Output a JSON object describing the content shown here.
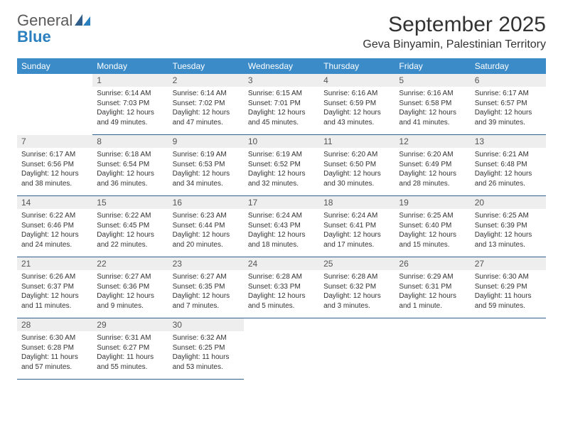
{
  "logo": {
    "text1": "General",
    "text2": "Blue"
  },
  "title": "September 2025",
  "location": "Geva Binyamin, Palestinian Territory",
  "colors": {
    "header_bg": "#3b8bc9",
    "header_text": "#ffffff",
    "day_header_bg": "#eeeeee",
    "day_header_text": "#555555",
    "cell_border": "#2f5f8a",
    "body_text": "#333333",
    "logo_gray": "#5a5a5a",
    "logo_blue": "#2a7fbf"
  },
  "typography": {
    "title_fontsize": 30,
    "location_fontsize": 16,
    "weekday_fontsize": 12,
    "daynum_fontsize": 12,
    "body_fontsize": 10
  },
  "weekdays": [
    "Sunday",
    "Monday",
    "Tuesday",
    "Wednesday",
    "Thursday",
    "Friday",
    "Saturday"
  ],
  "grid": [
    [
      null,
      {
        "n": "1",
        "sr": "Sunrise: 6:14 AM",
        "ss": "Sunset: 7:03 PM",
        "d1": "Daylight: 12 hours",
        "d2": "and 49 minutes."
      },
      {
        "n": "2",
        "sr": "Sunrise: 6:14 AM",
        "ss": "Sunset: 7:02 PM",
        "d1": "Daylight: 12 hours",
        "d2": "and 47 minutes."
      },
      {
        "n": "3",
        "sr": "Sunrise: 6:15 AM",
        "ss": "Sunset: 7:01 PM",
        "d1": "Daylight: 12 hours",
        "d2": "and 45 minutes."
      },
      {
        "n": "4",
        "sr": "Sunrise: 6:16 AM",
        "ss": "Sunset: 6:59 PM",
        "d1": "Daylight: 12 hours",
        "d2": "and 43 minutes."
      },
      {
        "n": "5",
        "sr": "Sunrise: 6:16 AM",
        "ss": "Sunset: 6:58 PM",
        "d1": "Daylight: 12 hours",
        "d2": "and 41 minutes."
      },
      {
        "n": "6",
        "sr": "Sunrise: 6:17 AM",
        "ss": "Sunset: 6:57 PM",
        "d1": "Daylight: 12 hours",
        "d2": "and 39 minutes."
      }
    ],
    [
      {
        "n": "7",
        "sr": "Sunrise: 6:17 AM",
        "ss": "Sunset: 6:56 PM",
        "d1": "Daylight: 12 hours",
        "d2": "and 38 minutes."
      },
      {
        "n": "8",
        "sr": "Sunrise: 6:18 AM",
        "ss": "Sunset: 6:54 PM",
        "d1": "Daylight: 12 hours",
        "d2": "and 36 minutes."
      },
      {
        "n": "9",
        "sr": "Sunrise: 6:19 AM",
        "ss": "Sunset: 6:53 PM",
        "d1": "Daylight: 12 hours",
        "d2": "and 34 minutes."
      },
      {
        "n": "10",
        "sr": "Sunrise: 6:19 AM",
        "ss": "Sunset: 6:52 PM",
        "d1": "Daylight: 12 hours",
        "d2": "and 32 minutes."
      },
      {
        "n": "11",
        "sr": "Sunrise: 6:20 AM",
        "ss": "Sunset: 6:50 PM",
        "d1": "Daylight: 12 hours",
        "d2": "and 30 minutes."
      },
      {
        "n": "12",
        "sr": "Sunrise: 6:20 AM",
        "ss": "Sunset: 6:49 PM",
        "d1": "Daylight: 12 hours",
        "d2": "and 28 minutes."
      },
      {
        "n": "13",
        "sr": "Sunrise: 6:21 AM",
        "ss": "Sunset: 6:48 PM",
        "d1": "Daylight: 12 hours",
        "d2": "and 26 minutes."
      }
    ],
    [
      {
        "n": "14",
        "sr": "Sunrise: 6:22 AM",
        "ss": "Sunset: 6:46 PM",
        "d1": "Daylight: 12 hours",
        "d2": "and 24 minutes."
      },
      {
        "n": "15",
        "sr": "Sunrise: 6:22 AM",
        "ss": "Sunset: 6:45 PM",
        "d1": "Daylight: 12 hours",
        "d2": "and 22 minutes."
      },
      {
        "n": "16",
        "sr": "Sunrise: 6:23 AM",
        "ss": "Sunset: 6:44 PM",
        "d1": "Daylight: 12 hours",
        "d2": "and 20 minutes."
      },
      {
        "n": "17",
        "sr": "Sunrise: 6:24 AM",
        "ss": "Sunset: 6:43 PM",
        "d1": "Daylight: 12 hours",
        "d2": "and 18 minutes."
      },
      {
        "n": "18",
        "sr": "Sunrise: 6:24 AM",
        "ss": "Sunset: 6:41 PM",
        "d1": "Daylight: 12 hours",
        "d2": "and 17 minutes."
      },
      {
        "n": "19",
        "sr": "Sunrise: 6:25 AM",
        "ss": "Sunset: 6:40 PM",
        "d1": "Daylight: 12 hours",
        "d2": "and 15 minutes."
      },
      {
        "n": "20",
        "sr": "Sunrise: 6:25 AM",
        "ss": "Sunset: 6:39 PM",
        "d1": "Daylight: 12 hours",
        "d2": "and 13 minutes."
      }
    ],
    [
      {
        "n": "21",
        "sr": "Sunrise: 6:26 AM",
        "ss": "Sunset: 6:37 PM",
        "d1": "Daylight: 12 hours",
        "d2": "and 11 minutes."
      },
      {
        "n": "22",
        "sr": "Sunrise: 6:27 AM",
        "ss": "Sunset: 6:36 PM",
        "d1": "Daylight: 12 hours",
        "d2": "and 9 minutes."
      },
      {
        "n": "23",
        "sr": "Sunrise: 6:27 AM",
        "ss": "Sunset: 6:35 PM",
        "d1": "Daylight: 12 hours",
        "d2": "and 7 minutes."
      },
      {
        "n": "24",
        "sr": "Sunrise: 6:28 AM",
        "ss": "Sunset: 6:33 PM",
        "d1": "Daylight: 12 hours",
        "d2": "and 5 minutes."
      },
      {
        "n": "25",
        "sr": "Sunrise: 6:28 AM",
        "ss": "Sunset: 6:32 PM",
        "d1": "Daylight: 12 hours",
        "d2": "and 3 minutes."
      },
      {
        "n": "26",
        "sr": "Sunrise: 6:29 AM",
        "ss": "Sunset: 6:31 PM",
        "d1": "Daylight: 12 hours",
        "d2": "and 1 minute."
      },
      {
        "n": "27",
        "sr": "Sunrise: 6:30 AM",
        "ss": "Sunset: 6:29 PM",
        "d1": "Daylight: 11 hours",
        "d2": "and 59 minutes."
      }
    ],
    [
      {
        "n": "28",
        "sr": "Sunrise: 6:30 AM",
        "ss": "Sunset: 6:28 PM",
        "d1": "Daylight: 11 hours",
        "d2": "and 57 minutes."
      },
      {
        "n": "29",
        "sr": "Sunrise: 6:31 AM",
        "ss": "Sunset: 6:27 PM",
        "d1": "Daylight: 11 hours",
        "d2": "and 55 minutes."
      },
      {
        "n": "30",
        "sr": "Sunrise: 6:32 AM",
        "ss": "Sunset: 6:25 PM",
        "d1": "Daylight: 11 hours",
        "d2": "and 53 minutes."
      },
      null,
      null,
      null,
      null
    ]
  ]
}
